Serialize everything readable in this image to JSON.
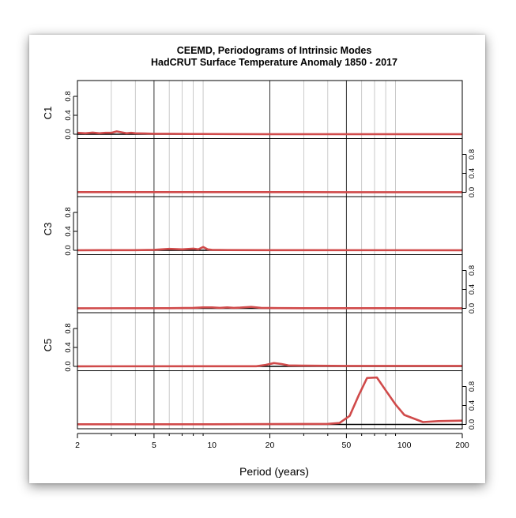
{
  "chart_data": {
    "type": "line",
    "title": "CEEMD, Periodograms of Intrinsic Modes",
    "subtitle": "HadCRUT Surface Temperature Anomaly 1850 - 2017",
    "xlabel": "Period (years)",
    "xscale": "log",
    "xlim": [
      2,
      200
    ],
    "x_ticks": [
      "2",
      "5",
      "10",
      "20",
      "50",
      "100",
      "200"
    ],
    "y_ticks": [
      "0.0",
      "0.4",
      "0.8"
    ],
    "ylim": [
      0,
      1
    ],
    "grid": true,
    "line_color": "#d04a4a",
    "panels": [
      {
        "label": "C1",
        "label_side": "left",
        "points": [
          [
            2,
            0.03
          ],
          [
            2.2,
            0.02
          ],
          [
            2.4,
            0.035
          ],
          [
            2.6,
            0.02
          ],
          [
            2.8,
            0.03
          ],
          [
            3.0,
            0.03
          ],
          [
            3.2,
            0.06
          ],
          [
            3.4,
            0.04
          ],
          [
            3.6,
            0.02
          ],
          [
            3.8,
            0.03
          ],
          [
            4,
            0.02
          ],
          [
            4.5,
            0.015
          ],
          [
            5,
            0.01
          ],
          [
            6,
            0.01
          ],
          [
            8,
            0.005
          ],
          [
            12,
            0.003
          ],
          [
            20,
            0.002
          ],
          [
            50,
            0.001
          ],
          [
            200,
            0.001
          ]
        ]
      },
      {
        "label": "",
        "label_side": "right",
        "points": [
          [
            2,
            0.003
          ],
          [
            5,
            0.004
          ],
          [
            10,
            0.004
          ],
          [
            20,
            0.003
          ],
          [
            50,
            0.002
          ],
          [
            200,
            0.002
          ]
        ]
      },
      {
        "label": "C3",
        "label_side": "left",
        "points": [
          [
            2,
            0.002
          ],
          [
            4,
            0.004
          ],
          [
            5,
            0.01
          ],
          [
            6,
            0.03
          ],
          [
            7,
            0.02
          ],
          [
            8,
            0.035
          ],
          [
            8.5,
            0.02
          ],
          [
            9,
            0.07
          ],
          [
            9.5,
            0.02
          ],
          [
            10,
            0.01
          ],
          [
            12,
            0.005
          ],
          [
            20,
            0.003
          ],
          [
            200,
            0.002
          ]
        ]
      },
      {
        "label": "",
        "label_side": "right",
        "points": [
          [
            2,
            0.002
          ],
          [
            6,
            0.004
          ],
          [
            8,
            0.01
          ],
          [
            9,
            0.02
          ],
          [
            10,
            0.02
          ],
          [
            11,
            0.01
          ],
          [
            12,
            0.02
          ],
          [
            13,
            0.01
          ],
          [
            14,
            0.015
          ],
          [
            16,
            0.03
          ],
          [
            18,
            0.01
          ],
          [
            22,
            0.005
          ],
          [
            30,
            0.004
          ],
          [
            200,
            0.002
          ]
        ]
      },
      {
        "label": "C5",
        "label_side": "left",
        "points": [
          [
            2,
            0.002
          ],
          [
            10,
            0.003
          ],
          [
            17,
            0.004
          ],
          [
            19,
            0.03
          ],
          [
            21,
            0.07
          ],
          [
            23,
            0.05
          ],
          [
            25,
            0.02
          ],
          [
            30,
            0.015
          ],
          [
            50,
            0.01
          ],
          [
            200,
            0.01
          ]
        ]
      },
      {
        "label": "",
        "label_side": "right",
        "points": [
          [
            2,
            0.003
          ],
          [
            10,
            0.004
          ],
          [
            20,
            0.006
          ],
          [
            40,
            0.012
          ],
          [
            46,
            0.03
          ],
          [
            52,
            0.18
          ],
          [
            58,
            0.62
          ],
          [
            64,
            0.98
          ],
          [
            72,
            0.99
          ],
          [
            80,
            0.72
          ],
          [
            90,
            0.42
          ],
          [
            100,
            0.2
          ],
          [
            125,
            0.05
          ],
          [
            150,
            0.07
          ],
          [
            200,
            0.08
          ]
        ]
      }
    ]
  }
}
